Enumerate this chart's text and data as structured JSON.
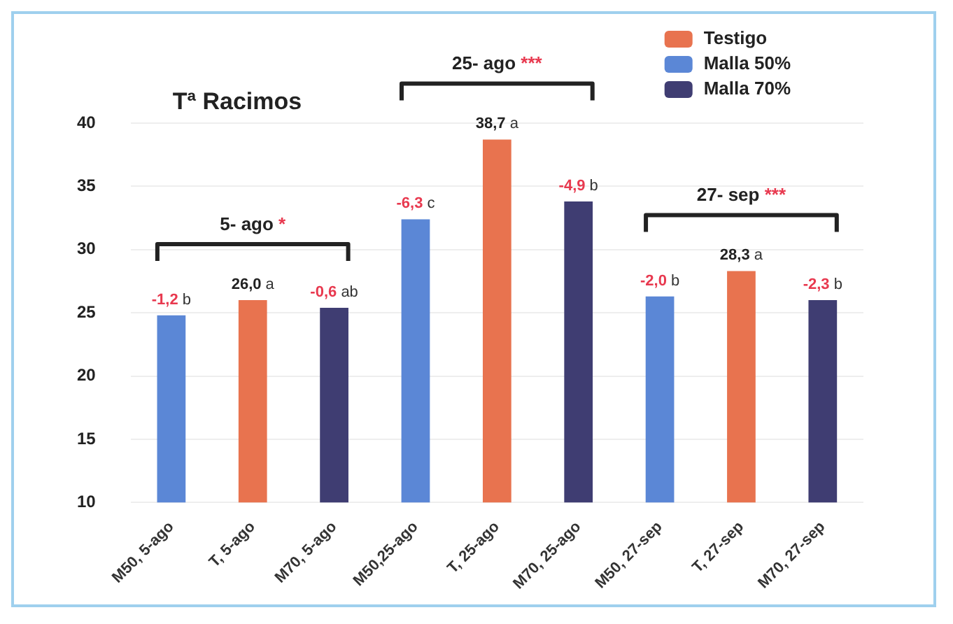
{
  "chart_data": {
    "type": "bar",
    "title": "Tª Racimos",
    "categories": [
      "M50, 5-ago",
      "T, 5-ago",
      "M70, 5-ago",
      "M50,25-ago",
      "T, 25-ago",
      "M70, 25-ago",
      "M50, 27-sep",
      "T, 27-sep",
      "M70, 27-sep"
    ],
    "series": [
      {
        "name": "Testigo",
        "color": "#e8734f",
        "values": [
          null,
          26.0,
          null,
          null,
          38.7,
          null,
          null,
          28.3,
          null
        ],
        "value_labels": [
          null,
          "26,0 a",
          null,
          null,
          "38,7 a",
          null,
          null,
          "28,3 a",
          null
        ]
      },
      {
        "name": "Malla 50%",
        "color": "#5b87d6",
        "values": [
          24.8,
          null,
          null,
          32.4,
          null,
          null,
          26.3,
          null,
          null
        ]
      },
      {
        "name": "Malla 70%",
        "color": "#3f3d72",
        "values": [
          null,
          null,
          25.4,
          null,
          null,
          33.8,
          null,
          null,
          26.0
        ]
      }
    ],
    "ylim": [
      10,
      40
    ],
    "yticks": [
      10,
      15,
      20,
      25,
      30,
      35,
      40
    ],
    "grid": "y",
    "legend": "top right",
    "annotations": [
      "5- ago *",
      "25- ago ***",
      "27- sep ***",
      "-1,2 b",
      "-0,6 ab",
      "-6,3 c",
      "-4,9 b",
      "-2,0 b",
      "-2,3 b"
    ]
  }
}
